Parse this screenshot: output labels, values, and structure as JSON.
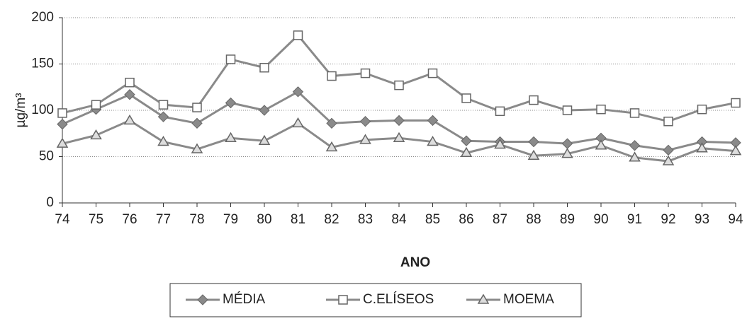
{
  "chart_data": {
    "type": "line",
    "x_label": "ANO",
    "y_label": "µg/m³",
    "categories": [
      "74",
      "75",
      "76",
      "77",
      "78",
      "79",
      "80",
      "81",
      "82",
      "83",
      "84",
      "85",
      "86",
      "87",
      "88",
      "89",
      "90",
      "91",
      "92",
      "93",
      "94"
    ],
    "series": [
      {
        "name": "MÉDIA",
        "color": "#8a8a8a",
        "marker": "diamond",
        "values": [
          85,
          101,
          117,
          93,
          86,
          108,
          100,
          120,
          86,
          88,
          89,
          89,
          67,
          66,
          66,
          64,
          70,
          62,
          57,
          66,
          65
        ]
      },
      {
        "name": "C.ELÍSEOS",
        "color": "#8a8a8a",
        "marker": "square",
        "values": [
          97,
          106,
          130,
          106,
          103,
          155,
          146,
          181,
          137,
          140,
          127,
          140,
          113,
          99,
          111,
          100,
          101,
          97,
          88,
          101,
          108
        ]
      },
      {
        "name": "MOEMA",
        "color": "#8a8a8a",
        "marker": "triangle",
        "values": [
          64,
          73,
          89,
          66,
          58,
          70,
          67,
          86,
          60,
          68,
          70,
          66,
          54,
          63,
          51,
          53,
          62,
          49,
          45,
          59,
          56
        ]
      }
    ],
    "ylim": [
      0,
      200
    ],
    "yticks": [
      0,
      50,
      100,
      150,
      200
    ],
    "grid": true
  }
}
